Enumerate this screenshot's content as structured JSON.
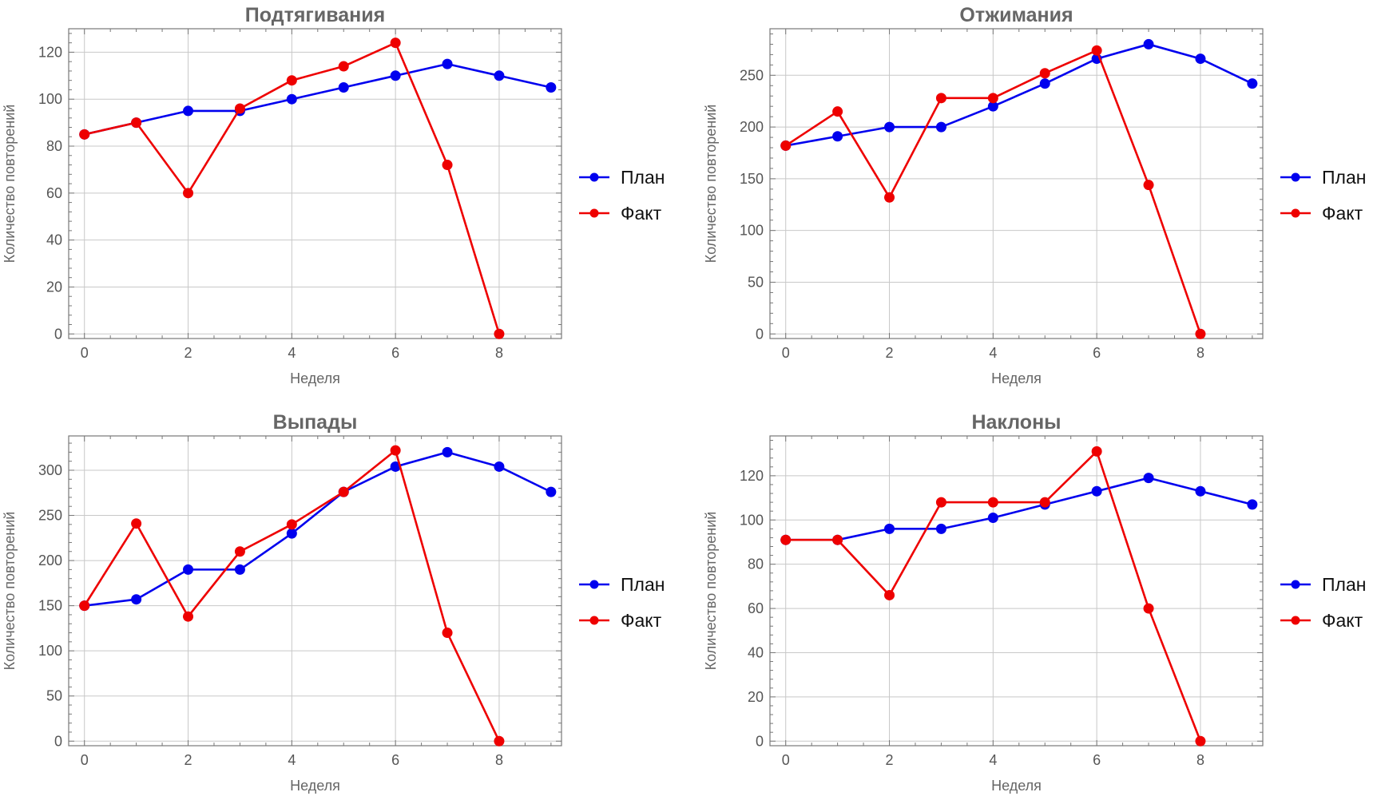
{
  "chart_data": [
    {
      "type": "line",
      "title": "Подтягивания",
      "xlabel": "Неделя",
      "ylabel": "Количество повторений",
      "xlim": [
        0,
        9
      ],
      "ylim": [
        0,
        130
      ],
      "x_ticks": [
        0,
        2,
        4,
        6,
        8
      ],
      "y_ticks": [
        0,
        20,
        40,
        60,
        80,
        100,
        120
      ],
      "grid": true,
      "legend_position": "right",
      "series": [
        {
          "name": "План",
          "color": "#0000ee",
          "x": [
            0,
            1,
            2,
            3,
            4,
            5,
            6,
            7,
            8,
            9
          ],
          "values": [
            85,
            90,
            95,
            95,
            100,
            105,
            110,
            115,
            110,
            105
          ]
        },
        {
          "name": "Факт",
          "color": "#ee0000",
          "x": [
            0,
            1,
            2,
            3,
            4,
            5,
            6,
            7,
            8
          ],
          "values": [
            85,
            90,
            60,
            96,
            108,
            114,
            124,
            72,
            0
          ]
        }
      ]
    },
    {
      "type": "line",
      "title": "Отжимания",
      "xlabel": "Неделя",
      "ylabel": "Количество повторений",
      "xlim": [
        0,
        9
      ],
      "ylim": [
        0,
        295
      ],
      "x_ticks": [
        0,
        2,
        4,
        6,
        8
      ],
      "y_ticks": [
        0,
        50,
        100,
        150,
        200,
        250
      ],
      "grid": true,
      "legend_position": "right",
      "series": [
        {
          "name": "План",
          "color": "#0000ee",
          "x": [
            0,
            1,
            2,
            3,
            4,
            5,
            6,
            7,
            8,
            9
          ],
          "values": [
            182,
            191,
            200,
            200,
            220,
            242,
            266,
            280,
            266,
            242
          ]
        },
        {
          "name": "Факт",
          "color": "#ee0000",
          "x": [
            0,
            1,
            2,
            3,
            4,
            5,
            6,
            7,
            8
          ],
          "values": [
            182,
            215,
            132,
            228,
            228,
            252,
            274,
            144,
            0
          ]
        }
      ]
    },
    {
      "type": "line",
      "title": "Выпады",
      "xlabel": "Неделя",
      "ylabel": "Количество повторений",
      "xlim": [
        0,
        9
      ],
      "ylim": [
        0,
        338
      ],
      "x_ticks": [
        0,
        2,
        4,
        6,
        8
      ],
      "y_ticks": [
        0,
        50,
        100,
        150,
        200,
        250,
        300
      ],
      "grid": true,
      "legend_position": "right",
      "series": [
        {
          "name": "План",
          "color": "#0000ee",
          "x": [
            0,
            1,
            2,
            3,
            4,
            5,
            6,
            7,
            8,
            9
          ],
          "values": [
            150,
            157,
            190,
            190,
            230,
            276,
            304,
            320,
            304,
            276
          ]
        },
        {
          "name": "Факт",
          "color": "#ee0000",
          "x": [
            0,
            1,
            2,
            3,
            4,
            5,
            6,
            7,
            8
          ],
          "values": [
            150,
            241,
            138,
            210,
            240,
            276,
            322,
            120,
            0
          ]
        }
      ]
    },
    {
      "type": "line",
      "title": "Наклоны",
      "xlabel": "Неделя",
      "ylabel": "Количество повторений",
      "xlim": [
        0,
        9
      ],
      "ylim": [
        0,
        138
      ],
      "x_ticks": [
        0,
        2,
        4,
        6,
        8
      ],
      "y_ticks": [
        0,
        20,
        40,
        60,
        80,
        100,
        120
      ],
      "grid": true,
      "legend_position": "right",
      "series": [
        {
          "name": "План",
          "color": "#0000ee",
          "x": [
            0,
            1,
            2,
            3,
            4,
            5,
            6,
            7,
            8,
            9
          ],
          "values": [
            91,
            91,
            96,
            96,
            101,
            107,
            113,
            119,
            113,
            107
          ]
        },
        {
          "name": "Факт",
          "color": "#ee0000",
          "x": [
            0,
            1,
            2,
            3,
            4,
            5,
            6,
            7,
            8
          ],
          "values": [
            91,
            91,
            66,
            108,
            108,
            108,
            131,
            60,
            0
          ]
        }
      ]
    }
  ]
}
